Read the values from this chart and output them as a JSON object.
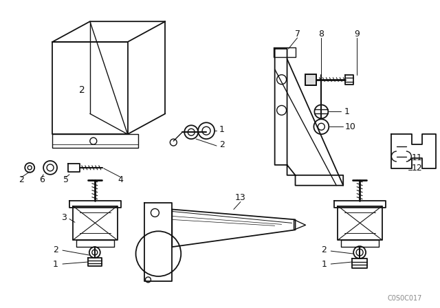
{
  "background_color": "#ffffff",
  "fig_width": 6.4,
  "fig_height": 4.48,
  "dpi": 100,
  "watermark": "C0S0C017",
  "line_color": "#111111",
  "line_width": 1.0,
  "label_fontsize": 9
}
